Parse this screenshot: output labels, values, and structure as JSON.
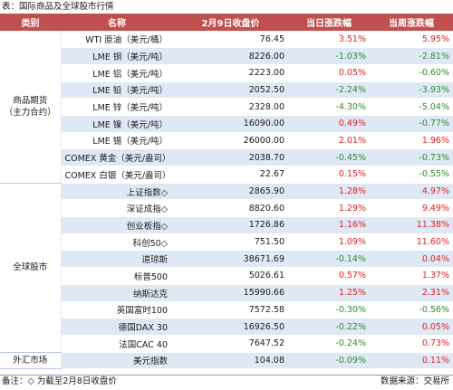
{
  "caption": "表：国际商品及全球股市行情",
  "headers": [
    "类别",
    "名称",
    "2月9日收盘价",
    "当日涨跌幅",
    "当周涨跌幅"
  ],
  "groups": [
    {
      "category": "商品期货\n（主力合约）",
      "rows": [
        {
          "name": "WTI 原油（美元/桶）",
          "close": "76.45",
          "day": "3.51%",
          "week": "5.95%"
        },
        {
          "name": "LME 铜（美元/吨）",
          "close": "8226.00",
          "day": "-1.03%",
          "week": "-2.81%"
        },
        {
          "name": "LME 铝（美元/吨）",
          "close": "2223.00",
          "day": "0.05%",
          "week": "-0.60%"
        },
        {
          "name": "LME 铅（美元/吨）",
          "close": "2052.50",
          "day": "-2.24%",
          "week": "-3.93%"
        },
        {
          "name": "LME 锌（美元/吨）",
          "close": "2328.00",
          "day": "-4.30%",
          "week": "-5.04%"
        },
        {
          "name": "LME 镍（美元/吨）",
          "close": "16090.00",
          "day": "0.49%",
          "week": "-0.77%"
        },
        {
          "name": "LME 锡（美元/吨）",
          "close": "26000.00",
          "day": "2.01%",
          "week": "1.96%"
        },
        {
          "name": "COMEX 黄金（美元/盎司）",
          "close": "2038.70",
          "day": "-0.45%",
          "week": "-0.73%"
        },
        {
          "name": "COMEX 白银（美元/盎司）",
          "close": "22.67",
          "day": "0.15%",
          "week": "-0.55%"
        }
      ]
    },
    {
      "category": "全球股市",
      "rows": [
        {
          "name": "上证指数◇",
          "close": "2865.90",
          "day": "1.28%",
          "week": "4.97%"
        },
        {
          "name": "深证成指◇",
          "close": "8820.60",
          "day": "1.29%",
          "week": "9.49%"
        },
        {
          "name": "创业板指◇",
          "close": "1726.86",
          "day": "1.16%",
          "week": "11.38%"
        },
        {
          "name": "科创50◇",
          "close": "751.50",
          "day": "1.09%",
          "week": "11.60%"
        },
        {
          "name": "道琼斯",
          "close": "38671.69",
          "day": "-0.14%",
          "week": "0.04%"
        },
        {
          "name": "标普500",
          "close": "5026.61",
          "day": "0.57%",
          "week": "1.37%"
        },
        {
          "name": "纳斯达克",
          "close": "15990.66",
          "day": "1.25%",
          "week": "2.31%"
        },
        {
          "name": "英国富时100",
          "close": "7572.58",
          "day": "-0.30%",
          "week": "-0.56%"
        },
        {
          "name": "德国DAX 30",
          "close": "16926.50",
          "day": "-0.22%",
          "week": "0.05%"
        },
        {
          "name": "法国CAC 40",
          "close": "7647.52",
          "day": "-0.24%",
          "week": "0.73%"
        }
      ]
    },
    {
      "category": "外汇市场",
      "rows": [
        {
          "name": "美元指数",
          "close": "104.08",
          "day": "-0.09%",
          "week": "0.11%"
        }
      ]
    }
  ],
  "footer": {
    "note": "备注：◇ 为截至2月8日收盘价",
    "source": "数据来源：交易所"
  },
  "colors": {
    "header": "#c0504d",
    "band": "#dfe9f6",
    "up": "#e02020",
    "down": "#2e8b2e"
  }
}
